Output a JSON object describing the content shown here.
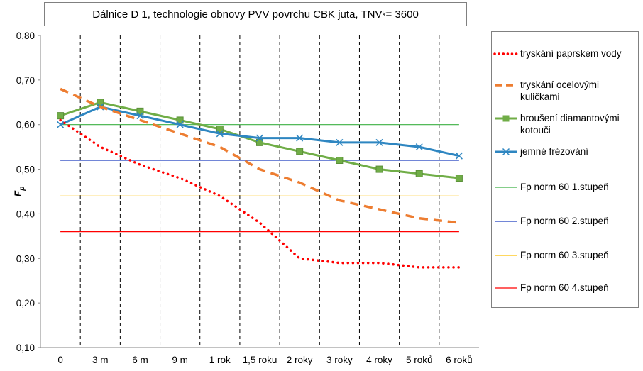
{
  "chart_data": {
    "type": "line",
    "title_main": "Dálnice  D 1, technologie obnovy PVV povrchu CBK juta, TNV",
    "title_sub": "k",
    "title_end": " = 3600",
    "ylabel_main": "F",
    "ylabel_sub": "p",
    "ylim": [
      0.1,
      0.8
    ],
    "yticks": [
      "0,10",
      "0,20",
      "0,30",
      "0,40",
      "0,50",
      "0,60",
      "0,70",
      "0,80"
    ],
    "categories": [
      "0",
      "3 m",
      "6 m",
      "9 m",
      "1 rok",
      "1,5 roku",
      "2 roky",
      "3 roky",
      "4 roky",
      "5 roků",
      "6 roků"
    ],
    "series": [
      {
        "name": "tryskání paprskem vody",
        "color": "#ff0000",
        "style": "dotted",
        "values": [
          0.61,
          0.55,
          0.51,
          0.48,
          0.44,
          0.38,
          0.3,
          0.29,
          0.29,
          0.28,
          0.28
        ]
      },
      {
        "name": "tryskání ocelovými kuličkami",
        "color": "#ed7d31",
        "style": "dashed",
        "values": [
          0.68,
          0.64,
          0.61,
          0.58,
          0.55,
          0.5,
          0.47,
          0.43,
          0.41,
          0.39,
          0.38
        ]
      },
      {
        "name": "broušení diamantovými kotouči",
        "color": "#70ad47",
        "style": "solid-square",
        "values": [
          0.62,
          0.65,
          0.63,
          0.61,
          0.59,
          0.56,
          0.54,
          0.52,
          0.5,
          0.49,
          0.48
        ]
      },
      {
        "name": "jemné frézování",
        "color": "#2e86c1",
        "style": "solid-x",
        "values": [
          0.6,
          0.64,
          0.62,
          0.6,
          0.58,
          0.57,
          0.57,
          0.56,
          0.56,
          0.55,
          0.53
        ]
      },
      {
        "name": "Fp norm 60 1.stupeň",
        "color": "#3cb043",
        "style": "thin",
        "values": [
          0.6,
          0.6,
          0.6,
          0.6,
          0.6,
          0.6,
          0.6,
          0.6,
          0.6,
          0.6,
          0.6
        ]
      },
      {
        "name": "Fp norm 60 2.stupeň",
        "color": "#1f3fbf",
        "style": "thin",
        "values": [
          0.52,
          0.52,
          0.52,
          0.52,
          0.52,
          0.52,
          0.52,
          0.52,
          0.52,
          0.52,
          0.52
        ]
      },
      {
        "name": "Fp norm 60 3.stupeň",
        "color": "#ffc000",
        "style": "thin",
        "values": [
          0.44,
          0.44,
          0.44,
          0.44,
          0.44,
          0.44,
          0.44,
          0.44,
          0.44,
          0.44,
          0.44
        ]
      },
      {
        "name": "Fp norm 60 4.stupeň",
        "color": "#ff0000",
        "style": "thin",
        "values": [
          0.36,
          0.36,
          0.36,
          0.36,
          0.36,
          0.36,
          0.36,
          0.36,
          0.36,
          0.36,
          0.36
        ]
      }
    ],
    "grid": "vertical dashed",
    "legend_position": "right"
  }
}
